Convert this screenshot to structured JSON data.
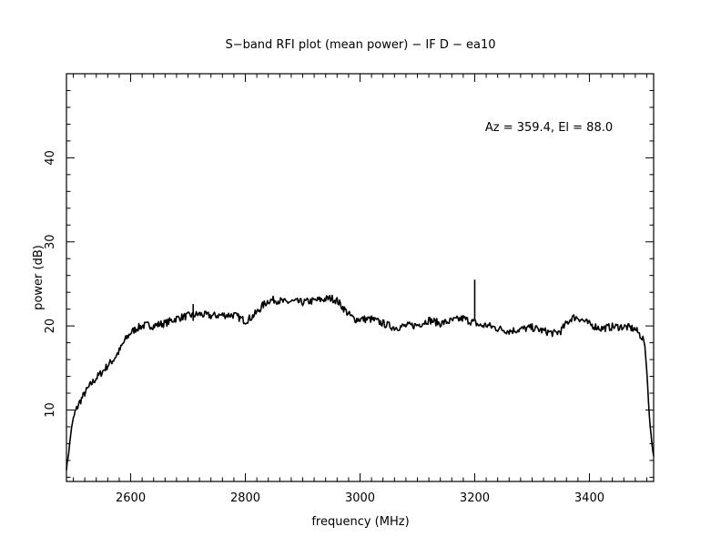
{
  "chart_data": {
    "type": "line",
    "title": "S−band RFI plot (mean power) − IF D − ea10",
    "xlabel": "frequency (MHz)",
    "ylabel": "power (dB)",
    "annotation": "Az = 359.4, El = 88.0",
    "xlim": [
      2488,
      3512
    ],
    "ylim": [
      1.5,
      50
    ],
    "xticks": [
      2600,
      2800,
      3000,
      3200,
      3400
    ],
    "yticks": [
      10,
      20,
      30,
      40
    ],
    "grid": false,
    "legend": "none",
    "line_color": "#000000",
    "series": [
      {
        "x": [
          2488,
          2492,
          2497,
          2503,
          2510,
          2520,
          2530,
          2540,
          2550,
          2560,
          2570,
          2580,
          2590,
          2600,
          2610,
          2620,
          2630,
          2640,
          2650,
          2660,
          2680,
          2700,
          2710,
          2720,
          2740,
          2760,
          2780,
          2800,
          2810,
          2820,
          2830,
          2840,
          2850,
          2860,
          2870,
          2880,
          2900,
          2920,
          2940,
          2950,
          2960,
          2970,
          2980,
          2990,
          3000,
          3020,
          3040,
          3060,
          3080,
          3100,
          3120,
          3140,
          3160,
          3180,
          3190,
          3200,
          3210,
          3220,
          3240,
          3260,
          3280,
          3300,
          3320,
          3340,
          3350,
          3360,
          3370,
          3380,
          3390,
          3400,
          3420,
          3440,
          3460,
          3470,
          3480,
          3490,
          3495,
          3500,
          3503,
          3506,
          3509,
          3512
        ],
        "y": [
          3,
          5,
          8,
          9.7,
          10.8,
          12,
          13,
          13.8,
          14.5,
          15.3,
          16,
          17,
          18.3,
          19.2,
          19.7,
          20,
          20.1,
          20,
          20.2,
          20.3,
          20.9,
          21.2,
          21.3,
          21.4,
          21.2,
          21.3,
          21.3,
          20.6,
          21,
          21.6,
          22.4,
          23,
          23.1,
          23,
          22.8,
          22.9,
          22.8,
          23,
          23.2,
          23.3,
          23,
          22.2,
          21.4,
          20.8,
          20.8,
          20.8,
          20.3,
          19.8,
          20,
          20.1,
          20.7,
          20.3,
          20.6,
          20.9,
          20.6,
          20.4,
          20,
          20.1,
          19.7,
          19.4,
          19.6,
          19.8,
          19.4,
          19.1,
          19.4,
          20.3,
          21,
          21,
          20.6,
          20.2,
          19.7,
          19.9,
          19.9,
          19.8,
          19.6,
          18.8,
          18.3,
          15,
          11,
          8,
          6,
          4.5
        ]
      }
    ],
    "spikes": [
      {
        "x": 3200,
        "y": 25.5
      },
      {
        "x": 2709,
        "y": 22.6
      }
    ]
  }
}
